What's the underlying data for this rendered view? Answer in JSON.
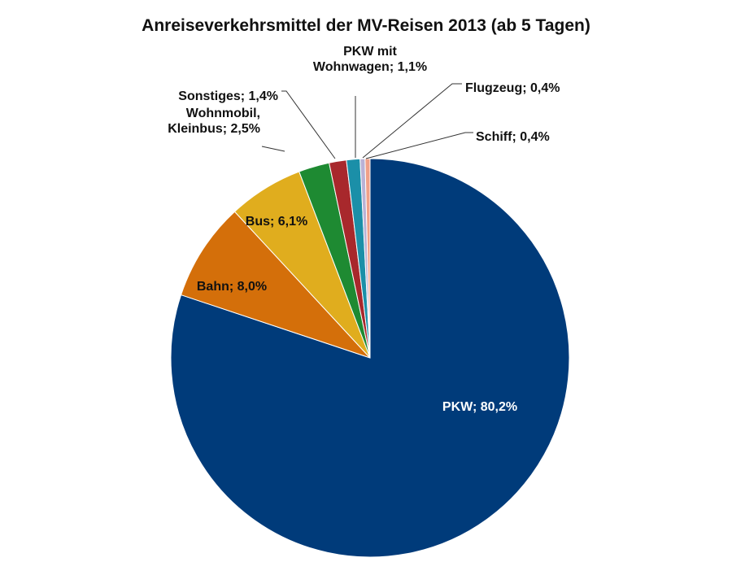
{
  "chart_data": {
    "type": "pie",
    "title": "Anreiseverkehrsmittel der MV-Reisen 2013 (ab 5 Tagen)",
    "slices": [
      {
        "name": "PKW",
        "value": 80.2,
        "label_lines": [
          "PKW; 80,2%"
        ],
        "color": "#003B7A"
      },
      {
        "name": "Bahn",
        "value": 8.0,
        "label_lines": [
          "Bahn; 8,0%"
        ],
        "color": "#D46F0A"
      },
      {
        "name": "Bus",
        "value": 6.1,
        "label_lines": [
          "Bus; 6,1%"
        ],
        "color": "#E0AD1E"
      },
      {
        "name": "Wohnmobil, Kleinbus",
        "value": 2.5,
        "label_lines": [
          "Wohnmobil,",
          "Kleinbus; 2,5%"
        ],
        "color": "#1E8A32"
      },
      {
        "name": "Sonstiges",
        "value": 1.4,
        "label_lines": [
          "Sonstiges; 1,4%"
        ],
        "color": "#A8282C"
      },
      {
        "name": "PKW mit Wohnwagen",
        "value": 1.1,
        "label_lines": [
          "PKW mit",
          "Wohnwagen; 1,1%"
        ],
        "color": "#1B8FA8"
      },
      {
        "name": "Flugzeug",
        "value": 0.4,
        "label_lines": [
          "Flugzeug; 0,4%"
        ],
        "color": "#B9B2D6"
      },
      {
        "name": "Schiff",
        "value": 0.4,
        "label_lines": [
          "Schiff; 0,4%"
        ],
        "color": "#F0A088"
      }
    ],
    "legend": "none"
  }
}
